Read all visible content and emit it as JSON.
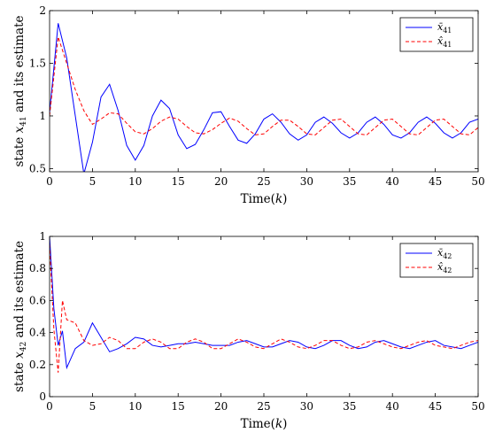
{
  "chart_data": [
    {
      "type": "line",
      "xlabel": "Time(k)",
      "ylabel": "state x41 and its estimate",
      "xlim": [
        0,
        50
      ],
      "ylim": [
        0.47,
        2
      ],
      "x_ticks": [
        0,
        5,
        10,
        15,
        20,
        25,
        30,
        35,
        40,
        45,
        50
      ],
      "y_ticks": [
        0.5,
        1,
        1.5,
        2
      ],
      "x_tick_labels": [
        "0",
        "5",
        "10",
        "15",
        "20",
        "25",
        "30",
        "35",
        "40",
        "45",
        "50"
      ],
      "y_tick_labels": [
        "0.5",
        "1",
        "1.5",
        "2"
      ],
      "grid": false,
      "legend_position": "top-right",
      "series": [
        {
          "name": "x̄41",
          "color": "#0000ff",
          "dash": "solid",
          "x": [
            0,
            1,
            2,
            3,
            4,
            5,
            6,
            7,
            8,
            9,
            10,
            11,
            12,
            13,
            14,
            15,
            16,
            17,
            18,
            19,
            20,
            21,
            22,
            23,
            24,
            25,
            26,
            27,
            28,
            29,
            30,
            31,
            32,
            33,
            34,
            35,
            36,
            37,
            38,
            39,
            40,
            41,
            42,
            43,
            44,
            45,
            46,
            47,
            48,
            49,
            50
          ],
          "values": [
            1.03,
            1.88,
            1.55,
            1.0,
            0.45,
            0.75,
            1.18,
            1.3,
            1.05,
            0.72,
            0.58,
            0.72,
            1.0,
            1.15,
            1.07,
            0.82,
            0.69,
            0.73,
            0.87,
            1.03,
            1.04,
            0.9,
            0.77,
            0.74,
            0.83,
            0.97,
            1.02,
            0.94,
            0.83,
            0.77,
            0.82,
            0.94,
            0.99,
            0.93,
            0.84,
            0.79,
            0.84,
            0.94,
            0.99,
            0.92,
            0.82,
            0.79,
            0.84,
            0.94,
            0.99,
            0.93,
            0.84,
            0.79,
            0.84,
            0.94,
            0.97
          ]
        },
        {
          "name": "x̂41",
          "color": "#ff0000",
          "dash": "dashed",
          "x": [
            0,
            1,
            2,
            3,
            4,
            5,
            6,
            7,
            8,
            9,
            10,
            11,
            12,
            13,
            14,
            15,
            16,
            17,
            18,
            19,
            20,
            21,
            22,
            23,
            24,
            25,
            26,
            27,
            28,
            29,
            30,
            31,
            32,
            33,
            34,
            35,
            36,
            37,
            38,
            39,
            40,
            41,
            42,
            43,
            44,
            45,
            46,
            47,
            48,
            49,
            50
          ],
          "values": [
            1.0,
            1.75,
            1.5,
            1.25,
            1.05,
            0.92,
            0.97,
            1.03,
            1.02,
            0.93,
            0.85,
            0.83,
            0.88,
            0.95,
            0.99,
            0.97,
            0.9,
            0.84,
            0.83,
            0.87,
            0.93,
            0.98,
            0.95,
            0.88,
            0.82,
            0.83,
            0.9,
            0.96,
            0.96,
            0.9,
            0.83,
            0.82,
            0.89,
            0.96,
            0.97,
            0.9,
            0.83,
            0.82,
            0.89,
            0.96,
            0.97,
            0.9,
            0.83,
            0.82,
            0.89,
            0.96,
            0.97,
            0.9,
            0.83,
            0.82,
            0.89
          ]
        }
      ]
    },
    {
      "type": "line",
      "xlabel": "Time(k)",
      "ylabel": "state x42 and its estimate",
      "xlim": [
        0,
        50
      ],
      "ylim": [
        0,
        1
      ],
      "x_ticks": [
        0,
        5,
        10,
        15,
        20,
        25,
        30,
        35,
        40,
        45,
        50
      ],
      "y_ticks": [
        0,
        0.2,
        0.4,
        0.6,
        0.8,
        1
      ],
      "x_tick_labels": [
        "0",
        "5",
        "10",
        "15",
        "20",
        "25",
        "30",
        "35",
        "40",
        "45",
        "50"
      ],
      "y_tick_labels": [
        "0",
        "0.2",
        "0.4",
        "0.6",
        "0.8",
        "1"
      ],
      "grid": false,
      "legend_position": "top-right",
      "series": [
        {
          "name": "x̄42",
          "color": "#0000ff",
          "dash": "solid",
          "x": [
            0,
            0.5,
            1,
            1.5,
            2,
            3,
            4,
            5,
            6,
            7,
            8,
            9,
            10,
            11,
            12,
            13,
            14,
            15,
            16,
            17,
            18,
            19,
            20,
            21,
            22,
            23,
            24,
            25,
            26,
            27,
            28,
            29,
            30,
            31,
            32,
            33,
            34,
            35,
            36,
            37,
            38,
            39,
            40,
            41,
            42,
            43,
            44,
            45,
            46,
            47,
            48,
            49,
            50
          ],
          "values": [
            1.0,
            0.55,
            0.32,
            0.41,
            0.18,
            0.3,
            0.34,
            0.46,
            0.37,
            0.28,
            0.3,
            0.33,
            0.37,
            0.36,
            0.32,
            0.31,
            0.32,
            0.33,
            0.33,
            0.34,
            0.33,
            0.32,
            0.32,
            0.32,
            0.34,
            0.35,
            0.33,
            0.31,
            0.31,
            0.33,
            0.35,
            0.34,
            0.31,
            0.3,
            0.32,
            0.35,
            0.35,
            0.32,
            0.3,
            0.31,
            0.34,
            0.35,
            0.33,
            0.31,
            0.3,
            0.32,
            0.34,
            0.35,
            0.32,
            0.31,
            0.3,
            0.32,
            0.34
          ]
        },
        {
          "name": "x̂42",
          "color": "#ff0000",
          "dash": "dashed",
          "x": [
            0,
            0.5,
            1,
            1.5,
            2,
            3,
            4,
            5,
            6,
            7,
            8,
            9,
            10,
            11,
            12,
            13,
            14,
            15,
            16,
            17,
            18,
            19,
            20,
            21,
            22,
            23,
            24,
            25,
            26,
            27,
            28,
            29,
            30,
            31,
            32,
            33,
            34,
            35,
            36,
            37,
            38,
            39,
            40,
            41,
            42,
            43,
            44,
            45,
            46,
            47,
            48,
            49,
            50
          ],
          "values": [
            0.95,
            0.42,
            0.15,
            0.6,
            0.48,
            0.46,
            0.35,
            0.32,
            0.33,
            0.37,
            0.35,
            0.3,
            0.3,
            0.34,
            0.36,
            0.34,
            0.3,
            0.3,
            0.34,
            0.36,
            0.34,
            0.3,
            0.3,
            0.33,
            0.36,
            0.34,
            0.31,
            0.3,
            0.33,
            0.36,
            0.34,
            0.31,
            0.3,
            0.32,
            0.35,
            0.35,
            0.32,
            0.3,
            0.31,
            0.34,
            0.35,
            0.33,
            0.31,
            0.3,
            0.32,
            0.34,
            0.35,
            0.32,
            0.31,
            0.3,
            0.32,
            0.34,
            0.35
          ]
        }
      ]
    }
  ]
}
